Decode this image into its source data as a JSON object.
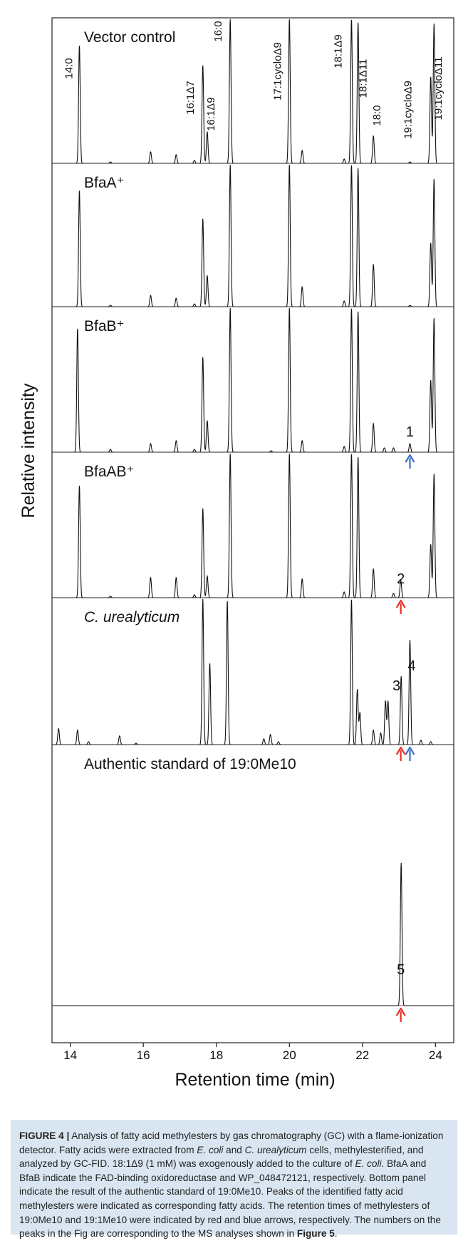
{
  "chart_data": {
    "type": "line",
    "xlabel": "Retention time (min)",
    "ylabel": "Relative intensity",
    "xlim": [
      13.5,
      24.5
    ],
    "x_ticks": [
      14,
      16,
      18,
      20,
      22,
      24
    ],
    "colors": {
      "trace": "#111111",
      "baseline": "#e8322a",
      "arrow_red": "#e8322a",
      "arrow_blue": "#3a6fc4"
    },
    "panels": [
      {
        "label": "Vector control",
        "peak_labels": [
          {
            "text": "14:0",
            "x": 14.25
          },
          {
            "text": "16:1Δ7",
            "x": 17.62
          },
          {
            "text": "16:1Δ9",
            "x": 17.75
          },
          {
            "text": "16:0",
            "x": 18.38
          },
          {
            "text": "17:1cycloΔ9",
            "x": 20.0
          },
          {
            "text": "18:1Δ9",
            "x": 21.7
          },
          {
            "text": "18:1Δ11",
            "x": 21.88
          },
          {
            "text": "18:0",
            "x": 22.3
          },
          {
            "text": "19:1cycloΔ9",
            "x": 23.87
          },
          {
            "text": "19:1cycloΔ11",
            "x": 23.95
          }
        ],
        "peaks": [
          {
            "x": 14.25,
            "h": 0.82
          },
          {
            "x": 15.1,
            "h": 0.01
          },
          {
            "x": 16.2,
            "h": 0.08
          },
          {
            "x": 16.9,
            "h": 0.06
          },
          {
            "x": 17.4,
            "h": 0.02
          },
          {
            "x": 17.63,
            "h": 0.68
          },
          {
            "x": 17.75,
            "h": 0.22
          },
          {
            "x": 18.38,
            "h": 1.0
          },
          {
            "x": 20.0,
            "h": 1.0
          },
          {
            "x": 20.35,
            "h": 0.09
          },
          {
            "x": 21.5,
            "h": 0.03
          },
          {
            "x": 21.7,
            "h": 1.0
          },
          {
            "x": 21.88,
            "h": 0.98
          },
          {
            "x": 22.3,
            "h": 0.19
          },
          {
            "x": 23.3,
            "h": 0.01
          },
          {
            "x": 23.87,
            "h": 0.6
          },
          {
            "x": 23.96,
            "h": 0.97
          }
        ],
        "numbers": [],
        "arrows": []
      },
      {
        "label": "BfaA⁺",
        "peak_labels": [],
        "peaks": [
          {
            "x": 14.25,
            "h": 0.82
          },
          {
            "x": 15.1,
            "h": 0.01
          },
          {
            "x": 16.2,
            "h": 0.08
          },
          {
            "x": 16.9,
            "h": 0.06
          },
          {
            "x": 17.4,
            "h": 0.02
          },
          {
            "x": 17.63,
            "h": 0.62
          },
          {
            "x": 17.75,
            "h": 0.22
          },
          {
            "x": 18.38,
            "h": 1.0
          },
          {
            "x": 20.0,
            "h": 1.0
          },
          {
            "x": 20.35,
            "h": 0.14
          },
          {
            "x": 21.5,
            "h": 0.04
          },
          {
            "x": 21.7,
            "h": 1.0
          },
          {
            "x": 21.88,
            "h": 0.98
          },
          {
            "x": 22.3,
            "h": 0.3
          },
          {
            "x": 23.3,
            "h": 0.01
          },
          {
            "x": 23.87,
            "h": 0.45
          },
          {
            "x": 23.96,
            "h": 0.9
          }
        ],
        "numbers": [],
        "arrows": []
      },
      {
        "label": "BfaB⁺",
        "peak_labels": [],
        "peaks": [
          {
            "x": 14.2,
            "h": 0.86
          },
          {
            "x": 15.1,
            "h": 0.02
          },
          {
            "x": 16.2,
            "h": 0.06
          },
          {
            "x": 16.9,
            "h": 0.08
          },
          {
            "x": 17.4,
            "h": 0.02
          },
          {
            "x": 17.63,
            "h": 0.66
          },
          {
            "x": 17.75,
            "h": 0.22
          },
          {
            "x": 18.38,
            "h": 1.0
          },
          {
            "x": 19.5,
            "h": 0.01
          },
          {
            "x": 20.0,
            "h": 1.0
          },
          {
            "x": 20.35,
            "h": 0.08
          },
          {
            "x": 21.5,
            "h": 0.04
          },
          {
            "x": 21.7,
            "h": 1.0
          },
          {
            "x": 21.88,
            "h": 0.98
          },
          {
            "x": 22.3,
            "h": 0.2
          },
          {
            "x": 22.6,
            "h": 0.03
          },
          {
            "x": 22.85,
            "h": 0.03
          },
          {
            "x": 23.3,
            "h": 0.06
          },
          {
            "x": 23.87,
            "h": 0.5
          },
          {
            "x": 23.96,
            "h": 0.93
          }
        ],
        "numbers": [
          {
            "text": "1",
            "x": 23.3
          }
        ],
        "arrows": [
          {
            "x": 23.3,
            "color": "blue"
          }
        ]
      },
      {
        "label": "BfaAB⁺",
        "peak_labels": [],
        "peaks": [
          {
            "x": 14.25,
            "h": 0.78
          },
          {
            "x": 15.1,
            "h": 0.01
          },
          {
            "x": 16.2,
            "h": 0.14
          },
          {
            "x": 16.9,
            "h": 0.14
          },
          {
            "x": 17.4,
            "h": 0.02
          },
          {
            "x": 17.63,
            "h": 0.62
          },
          {
            "x": 17.75,
            "h": 0.15
          },
          {
            "x": 18.38,
            "h": 1.0
          },
          {
            "x": 20.0,
            "h": 1.0
          },
          {
            "x": 20.35,
            "h": 0.13
          },
          {
            "x": 21.5,
            "h": 0.04
          },
          {
            "x": 21.7,
            "h": 1.0
          },
          {
            "x": 21.88,
            "h": 0.98
          },
          {
            "x": 22.3,
            "h": 0.2
          },
          {
            "x": 22.85,
            "h": 0.03
          },
          {
            "x": 23.05,
            "h": 0.12
          },
          {
            "x": 23.87,
            "h": 0.37
          },
          {
            "x": 23.96,
            "h": 0.86
          }
        ],
        "numbers": [
          {
            "text": "2",
            "x": 23.05
          }
        ],
        "arrows": [
          {
            "x": 23.05,
            "color": "red"
          }
        ]
      },
      {
        "label": "C. urealyticum",
        "label_italic": true,
        "peak_labels": [],
        "peaks": [
          {
            "x": 13.68,
            "h": 0.11
          },
          {
            "x": 14.2,
            "h": 0.1
          },
          {
            "x": 14.5,
            "h": 0.02
          },
          {
            "x": 15.35,
            "h": 0.06
          },
          {
            "x": 15.8,
            "h": 0.01
          },
          {
            "x": 17.63,
            "h": 1.0
          },
          {
            "x": 17.82,
            "h": 0.56
          },
          {
            "x": 18.3,
            "h": 0.99
          },
          {
            "x": 19.3,
            "h": 0.04
          },
          {
            "x": 19.48,
            "h": 0.07
          },
          {
            "x": 19.7,
            "h": 0.02
          },
          {
            "x": 21.7,
            "h": 1.0
          },
          {
            "x": 21.86,
            "h": 0.38
          },
          {
            "x": 21.93,
            "h": 0.22
          },
          {
            "x": 22.3,
            "h": 0.1
          },
          {
            "x": 22.5,
            "h": 0.08
          },
          {
            "x": 22.63,
            "h": 0.3
          },
          {
            "x": 22.7,
            "h": 0.3
          },
          {
            "x": 23.06,
            "h": 0.47
          },
          {
            "x": 23.3,
            "h": 0.72
          },
          {
            "x": 23.6,
            "h": 0.03
          },
          {
            "x": 23.87,
            "h": 0.02
          }
        ],
        "numbers": [
          {
            "text": "3",
            "x": 22.93
          },
          {
            "text": "4",
            "x": 23.35
          }
        ],
        "arrows": [
          {
            "x": 23.05,
            "color": "red"
          },
          {
            "x": 23.3,
            "color": "blue"
          }
        ]
      },
      {
        "label": "Authentic standard of 19:0Me10",
        "peak_labels": [],
        "peaks": [
          {
            "x": 23.06,
            "h": 0.55
          }
        ],
        "numbers": [
          {
            "text": "5",
            "x": 23.05
          }
        ],
        "arrows": [
          {
            "x": 23.05,
            "color": "red"
          }
        ]
      }
    ]
  },
  "caption": {
    "figure_label": "FIGURE 4 |",
    "s1": " Analysis of fatty acid methylesters by gas chromatography (GC) with a flame-ionization detector. Fatty acids were extracted from ",
    "ecoli1": "E. coli",
    "s2": " and ",
    "curea": "C. urealyticum",
    "s3": " cells, methylesterified, and analyzed by GC-FID. 18:1Δ9 (1 mM) was exogenously added to the culture of ",
    "ecoli2": "E. coli",
    "s4": ". BfaA and BfaB indicate the FAD-binding oxidoreductase and WP_048472121, respectively. Bottom panel indicate the result of the authentic standard of 19:0Me10. Peaks of the identified fatty acid methylesters were indicated as corresponding fatty acids. The retention times of methylesters of 19:0Me10 and 19:1Me10 were indicated by red and blue arrows, respectively. The numbers on the peaks in the Fig are corresponding to the MS analyses shown in ",
    "fig5": "Figure 5",
    "s5": "."
  }
}
